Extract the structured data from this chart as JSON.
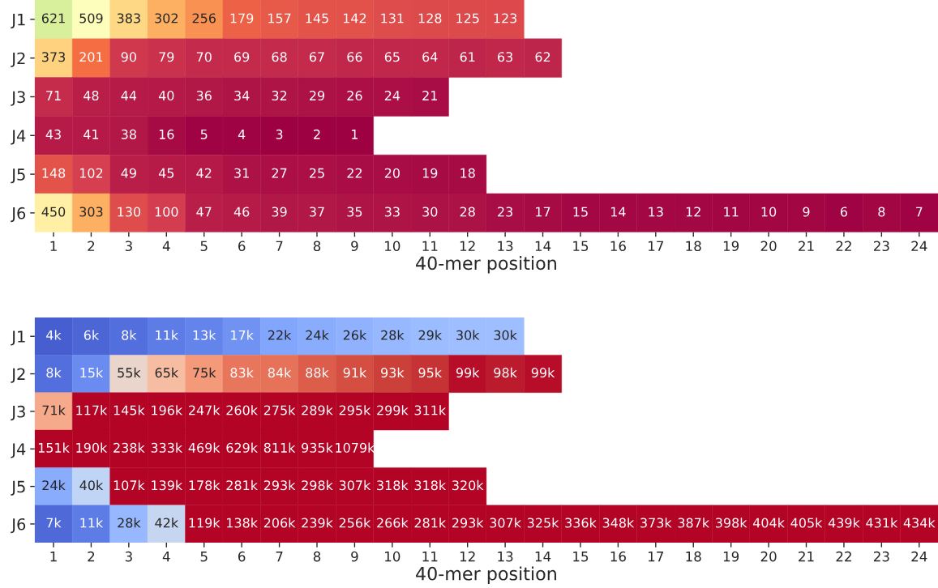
{
  "chart_data": [
    {
      "type": "heatmap",
      "xlabel": "40-mer position",
      "categories": [
        "1",
        "2",
        "3",
        "4",
        "5",
        "6",
        "7",
        "8",
        "9",
        "10",
        "11",
        "12",
        "13",
        "14",
        "15",
        "16",
        "17",
        "18",
        "19",
        "20",
        "21",
        "22",
        "23",
        "24"
      ],
      "y_categories": [
        "J1",
        "J2",
        "J3",
        "J4",
        "J5",
        "J6"
      ],
      "data_labels": true,
      "cells": [
        [
          621,
          509,
          383,
          302,
          256,
          179,
          157,
          145,
          142,
          131,
          128,
          125,
          123,
          null,
          null,
          null,
          null,
          null,
          null,
          null,
          null,
          null,
          null,
          null
        ],
        [
          373,
          201,
          90,
          79,
          70,
          69,
          68,
          67,
          66,
          65,
          64,
          61,
          63,
          62,
          null,
          null,
          null,
          null,
          null,
          null,
          null,
          null,
          null,
          null
        ],
        [
          71,
          48,
          44,
          40,
          36,
          34,
          32,
          29,
          26,
          24,
          21,
          null,
          null,
          null,
          null,
          null,
          null,
          null,
          null,
          null,
          null,
          null,
          null,
          null
        ],
        [
          43,
          41,
          38,
          16,
          5,
          4,
          3,
          2,
          1,
          null,
          null,
          null,
          null,
          null,
          null,
          null,
          null,
          null,
          null,
          null,
          null,
          null,
          null,
          null
        ],
        [
          148,
          102,
          49,
          45,
          42,
          31,
          27,
          25,
          22,
          20,
          19,
          18,
          null,
          null,
          null,
          null,
          null,
          null,
          null,
          null,
          null,
          null,
          null,
          null
        ],
        [
          450,
          303,
          130,
          100,
          47,
          46,
          39,
          37,
          35,
          33,
          30,
          28,
          23,
          17,
          15,
          14,
          13,
          12,
          11,
          10,
          9,
          6,
          8,
          7
        ]
      ]
    },
    {
      "type": "heatmap",
      "xlabel": "40-mer position",
      "categories": [
        "1",
        "2",
        "3",
        "4",
        "5",
        "6",
        "7",
        "8",
        "9",
        "10",
        "11",
        "12",
        "13",
        "14",
        "15",
        "16",
        "17",
        "18",
        "19",
        "20",
        "21",
        "22",
        "23",
        "24"
      ],
      "y_categories": [
        "J1",
        "J2",
        "J3",
        "J4",
        "J5",
        "J6"
      ],
      "cells": [
        [
          4000,
          6000,
          8000,
          11000,
          13000,
          17000,
          22000,
          24000,
          26000,
          28000,
          29000,
          30000,
          30000,
          null,
          null,
          null,
          null,
          null,
          null,
          null,
          null,
          null,
          null,
          null
        ],
        [
          8000,
          15000,
          55000,
          65000,
          75000,
          83000,
          84000,
          88000,
          91000,
          93000,
          95000,
          99000,
          98000,
          99000,
          null,
          null,
          null,
          null,
          null,
          null,
          null,
          null,
          null,
          null
        ],
        [
          71000,
          117000,
          145000,
          196000,
          247000,
          260000,
          275000,
          289000,
          295000,
          299000,
          311000,
          null,
          null,
          null,
          null,
          null,
          null,
          null,
          null,
          null,
          null,
          null,
          null,
          null
        ],
        [
          151000,
          190000,
          238000,
          333000,
          469000,
          629000,
          811000,
          935000,
          1079000,
          null,
          null,
          null,
          null,
          null,
          null,
          null,
          null,
          null,
          null,
          null,
          null,
          null,
          null,
          null
        ],
        [
          24000,
          40000,
          107000,
          139000,
          178000,
          281000,
          293000,
          298000,
          307000,
          318000,
          318000,
          320000,
          null,
          null,
          null,
          null,
          null,
          null,
          null,
          null,
          null,
          null,
          null,
          null
        ],
        [
          7000,
          11000,
          28000,
          42000,
          119000,
          138000,
          206000,
          239000,
          256000,
          266000,
          281000,
          293000,
          307000,
          325000,
          336000,
          348000,
          373000,
          387000,
          398000,
          404000,
          405000,
          439000,
          431000,
          434000
        ]
      ],
      "cell_labels": [
        [
          "4k",
          "6k",
          "8k",
          "11k",
          "13k",
          "17k",
          "22k",
          "24k",
          "26k",
          "28k",
          "29k",
          "30k",
          "30k",
          null,
          null,
          null,
          null,
          null,
          null,
          null,
          null,
          null,
          null,
          null
        ],
        [
          "8k",
          "15k",
          "55k",
          "65k",
          "75k",
          "83k",
          "84k",
          "88k",
          "91k",
          "93k",
          "95k",
          "99k",
          "98k",
          "99k",
          null,
          null,
          null,
          null,
          null,
          null,
          null,
          null,
          null,
          null
        ],
        [
          "71k",
          "117k",
          "145k",
          "196k",
          "247k",
          "260k",
          "275k",
          "289k",
          "295k",
          "299k",
          "311k",
          null,
          null,
          null,
          null,
          null,
          null,
          null,
          null,
          null,
          null,
          null,
          null,
          null
        ],
        [
          "151k",
          "190k",
          "238k",
          "333k",
          "469k",
          "629k",
          "811k",
          "935k",
          "1079k",
          null,
          null,
          null,
          null,
          null,
          null,
          null,
          null,
          null,
          null,
          null,
          null,
          null,
          null,
          null
        ],
        [
          "24k",
          "40k",
          "107k",
          "139k",
          "178k",
          "281k",
          "293k",
          "298k",
          "307k",
          "318k",
          "318k",
          "320k",
          null,
          null,
          null,
          null,
          null,
          null,
          null,
          null,
          null,
          null,
          null,
          null
        ],
        [
          "7k",
          "11k",
          "28k",
          "42k",
          "119k",
          "138k",
          "206k",
          "239k",
          "256k",
          "266k",
          "281k",
          "293k",
          "307k",
          "325k",
          "336k",
          "348k",
          "373k",
          "387k",
          "398k",
          "404k",
          "405k",
          "439k",
          "431k",
          "434k"
        ]
      ]
    }
  ]
}
